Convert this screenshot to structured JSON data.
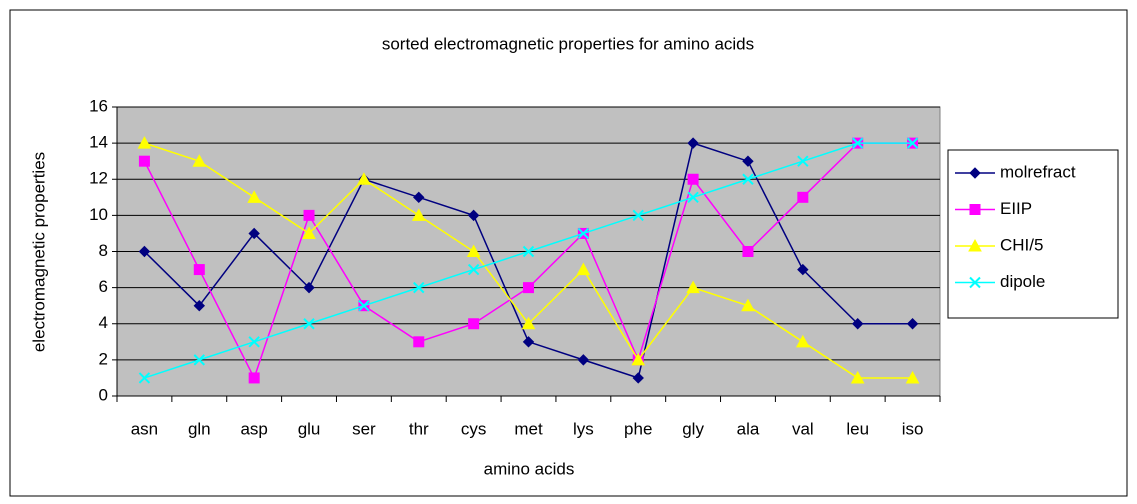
{
  "chart_data": {
    "type": "line",
    "title": "sorted electromagnetic properties for amino acids",
    "xlabel": "amino acids",
    "ylabel": "electromagnetic properties",
    "categories": [
      "asn",
      "gln",
      "asp",
      "glu",
      "ser",
      "thr",
      "cys",
      "met",
      "lys",
      "phe",
      "gly",
      "ala",
      "val",
      "leu",
      "iso"
    ],
    "series": [
      {
        "name": "molrefract",
        "color": "#000080",
        "marker": "diamond",
        "values": [
          8,
          5,
          9,
          6,
          12,
          11,
          10,
          3,
          2,
          1,
          14,
          13,
          7,
          4,
          4
        ]
      },
      {
        "name": "EIIP",
        "color": "#ff00ff",
        "marker": "square",
        "values": [
          13,
          7,
          1,
          10,
          5,
          3,
          4,
          6,
          9,
          2,
          12,
          8,
          11,
          14,
          14
        ]
      },
      {
        "name": "CHI/5",
        "color": "#ffff00",
        "marker": "triangle",
        "values": [
          14,
          13,
          11,
          9,
          12,
          10,
          8,
          4,
          7,
          2,
          6,
          5,
          3,
          1,
          1
        ]
      },
      {
        "name": "dipole",
        "color": "#00ffff",
        "marker": "x",
        "values": [
          1,
          2,
          3,
          4,
          5,
          6,
          7,
          8,
          9,
          10,
          11,
          12,
          13,
          14,
          14
        ]
      }
    ],
    "ylim": [
      0,
      16
    ],
    "yticks": [
      0,
      2,
      4,
      6,
      8,
      10,
      12,
      14,
      16
    ],
    "grid": true,
    "legend": "right",
    "plot_background": "#c0c0c0"
  }
}
